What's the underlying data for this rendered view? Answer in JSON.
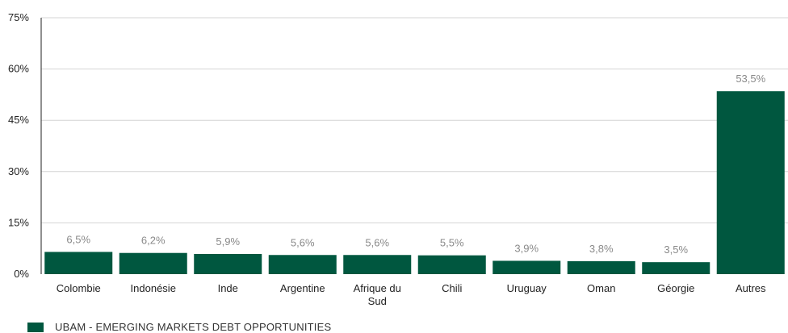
{
  "chart_data": {
    "type": "bar",
    "categories": [
      "Colombie",
      "Indonésie",
      "Inde",
      "Argentine",
      "Afrique du Sud",
      "Chili",
      "Uruguay",
      "Oman",
      "Géorgie",
      "Autres"
    ],
    "category_lines": [
      [
        "Colombie"
      ],
      [
        "Indonésie"
      ],
      [
        "Inde"
      ],
      [
        "Argentine"
      ],
      [
        "Afrique du",
        "Sud"
      ],
      [
        "Chili"
      ],
      [
        "Uruguay"
      ],
      [
        "Oman"
      ],
      [
        "Géorgie"
      ],
      [
        "Autres"
      ]
    ],
    "series": [
      {
        "name": "UBAM - EMERGING MARKETS DEBT OPPORTUNITIES",
        "values": [
          6.5,
          6.2,
          5.9,
          5.6,
          5.6,
          5.5,
          3.9,
          3.8,
          3.5,
          53.5
        ],
        "labels": [
          "6,5%",
          "6,2%",
          "5,9%",
          "5,6%",
          "5,6%",
          "5,5%",
          "3,9%",
          "3,8%",
          "3,5%",
          "53,5%"
        ],
        "color": "#00573f"
      }
    ],
    "yticks": [
      0,
      15,
      30,
      45,
      60,
      75
    ],
    "ytick_labels": [
      "0%",
      "15%",
      "30%",
      "45%",
      "60%",
      "75%"
    ],
    "ylim": [
      0,
      75
    ],
    "grid": true,
    "legend_position": "bottom-left",
    "title": "",
    "xlabel": "",
    "ylabel": ""
  },
  "colors": {
    "bar": "#00573f",
    "grid": "#d4d4d4",
    "axis": "#222222",
    "data_label": "#8a8a8a"
  }
}
